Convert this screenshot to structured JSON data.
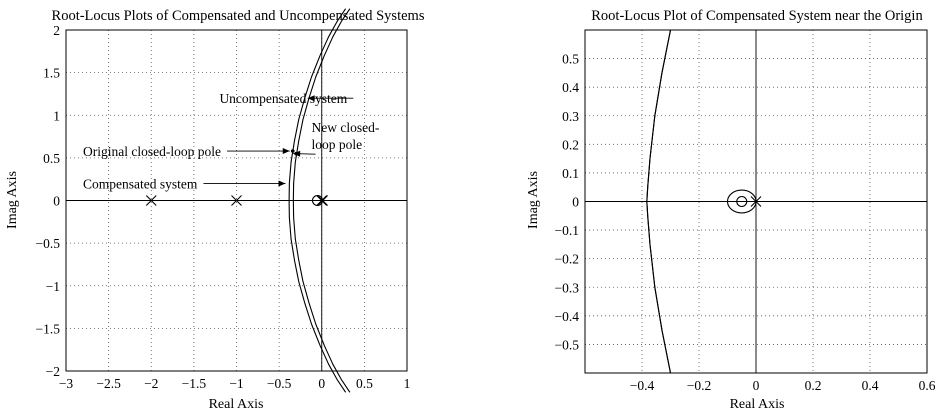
{
  "chart_data": [
    {
      "type": "line",
      "title": "Root-Locus Plots of Compensated and Uncompensated Systems",
      "xlabel": "Real Axis",
      "ylabel": "Imag Axis",
      "xlim": [
        -3,
        1
      ],
      "ylim": [
        -2,
        2
      ],
      "grid": true,
      "xticks": [
        -3,
        -2.5,
        -2,
        -1.5,
        -1,
        -0.5,
        0,
        0.5,
        1
      ],
      "yticks": [
        -2,
        -1.5,
        -1,
        -0.5,
        0,
        0.5,
        1,
        1.5,
        2
      ],
      "xtick_labels": [
        "−3",
        "−2.5",
        "−2",
        "−1.5",
        "−1",
        "−0.5",
        "0",
        "0.5",
        "1"
      ],
      "ytick_labels": [
        "−2",
        "−1.5",
        "−1",
        "−0.5",
        "0",
        "0.5",
        "1",
        "1.5",
        "2"
      ],
      "series": [
        {
          "x": [
            -0.383,
            -0.38,
            -0.36,
            -0.32,
            -0.27,
            -0.2,
            -0.12,
            -0.02,
            0.08,
            0.18,
            0.28
          ],
          "y": [
            0,
            0.2,
            0.45,
            0.7,
            0.95,
            1.2,
            1.45,
            1.7,
            1.92,
            2.1,
            2.25
          ]
        },
        {
          "x": [
            -0.333,
            -0.33,
            -0.31,
            -0.27,
            -0.22,
            -0.15,
            -0.07,
            0.03,
            0.13,
            0.23,
            0.33
          ],
          "y": [
            0,
            0.2,
            0.45,
            0.7,
            0.95,
            1.2,
            1.45,
            1.7,
            1.92,
            2.1,
            2.25
          ]
        }
      ],
      "real_axis_locus": {
        "from": -3,
        "to": -0.36
      },
      "poles": [
        [
          -2,
          0
        ],
        [
          -1,
          0
        ],
        [
          0,
          0
        ],
        [
          0.01,
          0
        ]
      ],
      "zeros": [
        [
          -0.05,
          0
        ]
      ],
      "closed_loop_poles": [
        [
          -0.34,
          0.58
        ],
        [
          -0.3,
          0.55
        ]
      ],
      "annotations": [
        {
          "label": "Uncompensated system",
          "x": -1.2,
          "y": 1.2,
          "arrow_to": [
            -0.13,
            1.2
          ]
        },
        {
          "label": "Original closed-loop pole",
          "x": -2.8,
          "y": 0.58,
          "arrow_to": [
            -0.34,
            0.58
          ]
        },
        {
          "label": "New closed-",
          "x": -0.12,
          "y": 0.86
        },
        {
          "label": "loop pole",
          "x": -0.12,
          "y": 0.66,
          "arrow_to": [
            -0.3,
            0.55
          ]
        },
        {
          "label": "Compensated system",
          "x": -2.8,
          "y": 0.2,
          "arrow_to": [
            -0.39,
            0.2
          ]
        }
      ]
    },
    {
      "type": "line",
      "title": "Root-Locus Plot of Compensated System near the Origin",
      "xlabel": "Real Axis",
      "ylabel": "Imag Axis",
      "xlim": [
        -0.6,
        0.6
      ],
      "ylim": [
        -0.6,
        0.6
      ],
      "grid": true,
      "xticks": [
        -0.4,
        -0.2,
        0,
        0.2,
        0.4,
        0.6
      ],
      "yticks": [
        -0.5,
        -0.4,
        -0.3,
        -0.2,
        -0.1,
        0,
        0.1,
        0.2,
        0.3,
        0.4,
        0.5
      ],
      "xtick_labels": [
        "−0.4",
        "−0.2",
        "0",
        "0.2",
        "0.4",
        "0.6"
      ],
      "ytick_labels": [
        "−0.5",
        "−0.4",
        "−0.3",
        "−0.2",
        "−0.1",
        "0",
        "0.1",
        "0.2",
        "0.3",
        "0.4",
        "0.5"
      ],
      "series": [
        {
          "x": [
            -0.3,
            -0.33,
            -0.355,
            -0.372,
            -0.38,
            -0.383,
            -0.38,
            -0.372,
            -0.355,
            -0.33,
            -0.3
          ],
          "y": [
            0.6,
            0.45,
            0.3,
            0.15,
            0.05,
            0,
            -0.05,
            -0.15,
            -0.3,
            -0.45,
            -0.6
          ]
        }
      ],
      "small_loop": {
        "center": [
          -0.05,
          0
        ],
        "radius_x": 0.05,
        "radius_y": 0.04
      },
      "real_axis_locus": {
        "from": -0.6,
        "to": 0
      },
      "poles": [
        [
          0,
          0
        ]
      ],
      "zeros": [
        [
          -0.05,
          0
        ]
      ]
    }
  ]
}
